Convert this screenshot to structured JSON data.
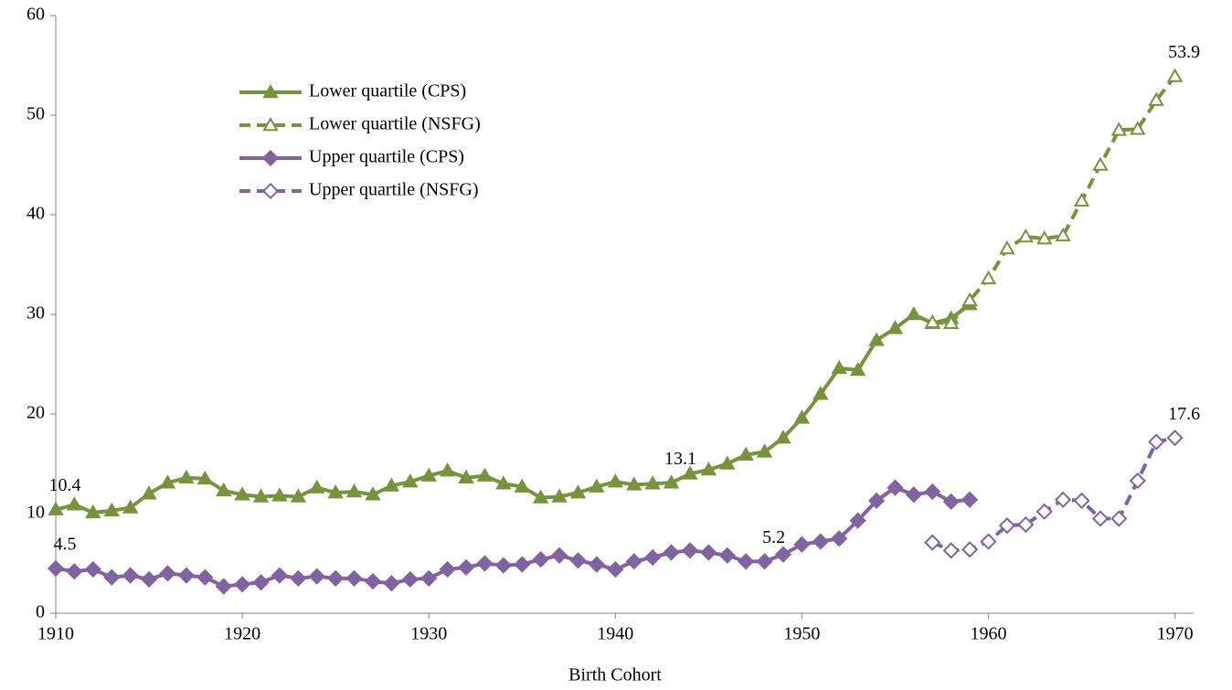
{
  "chart_data": {
    "type": "line",
    "xlabel": "Birth Cohort",
    "xlim": [
      1910,
      1971
    ],
    "ylim": [
      0,
      60
    ],
    "xticks": [
      1910,
      1920,
      1930,
      1940,
      1950,
      1960,
      1970
    ],
    "yticks": [
      0,
      10,
      20,
      30,
      40,
      50,
      60
    ],
    "grid": false,
    "legend": "upper left",
    "series": [
      {
        "name": "Lower quartile (CPS)",
        "color": "#77933c",
        "marker": "triangle",
        "filled": true,
        "dashed": false,
        "x": [
          1910,
          1911,
          1912,
          1913,
          1914,
          1915,
          1916,
          1917,
          1918,
          1919,
          1920,
          1921,
          1922,
          1923,
          1924,
          1925,
          1926,
          1927,
          1928,
          1929,
          1930,
          1931,
          1932,
          1933,
          1934,
          1935,
          1936,
          1937,
          1938,
          1939,
          1940,
          1941,
          1942,
          1943,
          1944,
          1945,
          1946,
          1947,
          1948,
          1949,
          1950,
          1951,
          1952,
          1953,
          1954,
          1955,
          1956,
          1957,
          1958,
          1959
        ],
        "values": [
          10.4,
          10.9,
          10.1,
          10.3,
          10.6,
          12.0,
          13.1,
          13.6,
          13.5,
          12.3,
          11.9,
          11.7,
          11.8,
          11.7,
          12.6,
          12.1,
          12.2,
          11.9,
          12.8,
          13.2,
          13.8,
          14.3,
          13.6,
          13.8,
          13.0,
          12.7,
          11.6,
          11.7,
          12.1,
          12.7,
          13.2,
          12.9,
          13.0,
          13.1,
          14.0,
          14.4,
          15.0,
          15.9,
          16.2,
          17.6,
          19.6,
          22.0,
          24.6,
          24.4,
          27.4,
          28.6,
          30.0,
          29.1,
          29.6,
          31.0
        ],
        "value_labels": [
          "10.4",
          null,
          null,
          null,
          null,
          null,
          null,
          null,
          null,
          null,
          null,
          null,
          null,
          null,
          null,
          null,
          null,
          null,
          null,
          null,
          null,
          null,
          null,
          null,
          null,
          null,
          null,
          null,
          null,
          null,
          null,
          null,
          null,
          "13.1",
          null,
          null,
          null,
          null,
          null,
          null,
          null,
          null,
          null,
          null,
          null,
          null,
          null,
          null,
          null,
          null
        ]
      },
      {
        "name": "Lower quartile (NSFG)",
        "color": "#77933c",
        "marker": "triangle",
        "filled": false,
        "dashed": true,
        "x": [
          1957,
          1958,
          1959,
          1960,
          1961,
          1962,
          1963,
          1964,
          1965,
          1966,
          1967,
          1968,
          1969,
          1970
        ],
        "values": [
          29.2,
          29.1,
          31.4,
          33.6,
          36.6,
          37.8,
          37.6,
          37.9,
          41.4,
          45.0,
          48.5,
          48.6,
          51.5,
          53.9
        ],
        "value_labels": [
          null,
          null,
          null,
          null,
          null,
          null,
          null,
          null,
          null,
          null,
          null,
          null,
          null,
          "53.9"
        ]
      },
      {
        "name": "Upper quartile (CPS)",
        "color": "#8064a2",
        "marker": "diamond",
        "filled": true,
        "dashed": false,
        "x": [
          1910,
          1911,
          1912,
          1913,
          1914,
          1915,
          1916,
          1917,
          1918,
          1919,
          1920,
          1921,
          1922,
          1923,
          1924,
          1925,
          1926,
          1927,
          1928,
          1929,
          1930,
          1931,
          1932,
          1933,
          1934,
          1935,
          1936,
          1937,
          1938,
          1939,
          1940,
          1941,
          1942,
          1943,
          1944,
          1945,
          1946,
          1947,
          1948,
          1949,
          1950,
          1951,
          1952,
          1953,
          1954,
          1955,
          1956,
          1957,
          1958,
          1959
        ],
        "values": [
          4.5,
          4.2,
          4.4,
          3.6,
          3.8,
          3.4,
          4.0,
          3.8,
          3.6,
          2.7,
          2.9,
          3.1,
          3.8,
          3.5,
          3.7,
          3.5,
          3.5,
          3.2,
          3.0,
          3.4,
          3.5,
          4.4,
          4.6,
          5.0,
          4.8,
          4.9,
          5.4,
          5.8,
          5.3,
          4.9,
          4.4,
          5.2,
          5.6,
          6.1,
          6.3,
          6.1,
          5.8,
          5.2,
          5.2,
          5.9,
          6.9,
          7.2,
          7.5,
          9.3,
          11.3,
          12.6,
          11.9,
          12.2,
          11.2,
          11.4
        ],
        "value_labels": [
          "4.5",
          null,
          null,
          null,
          null,
          null,
          null,
          null,
          null,
          null,
          null,
          null,
          null,
          null,
          null,
          null,
          null,
          null,
          null,
          null,
          null,
          null,
          null,
          null,
          null,
          null,
          null,
          null,
          null,
          null,
          null,
          null,
          null,
          null,
          null,
          null,
          null,
          null,
          "5.2",
          null,
          null,
          null,
          null,
          null,
          null,
          null,
          null,
          null,
          null,
          null
        ]
      },
      {
        "name": "Upper quartile (NSFG)",
        "color": "#8064a2",
        "marker": "diamond",
        "filled": false,
        "dashed": true,
        "x": [
          1957,
          1958,
          1959,
          1960,
          1961,
          1962,
          1963,
          1964,
          1965,
          1966,
          1967,
          1968,
          1969,
          1970
        ],
        "values": [
          7.1,
          6.3,
          6.4,
          7.2,
          8.8,
          8.9,
          10.2,
          11.4,
          11.3,
          9.5,
          9.5,
          13.3,
          17.2,
          17.6
        ],
        "value_labels": [
          null,
          null,
          null,
          null,
          null,
          null,
          null,
          null,
          null,
          null,
          null,
          null,
          null,
          "17.6"
        ]
      }
    ]
  }
}
